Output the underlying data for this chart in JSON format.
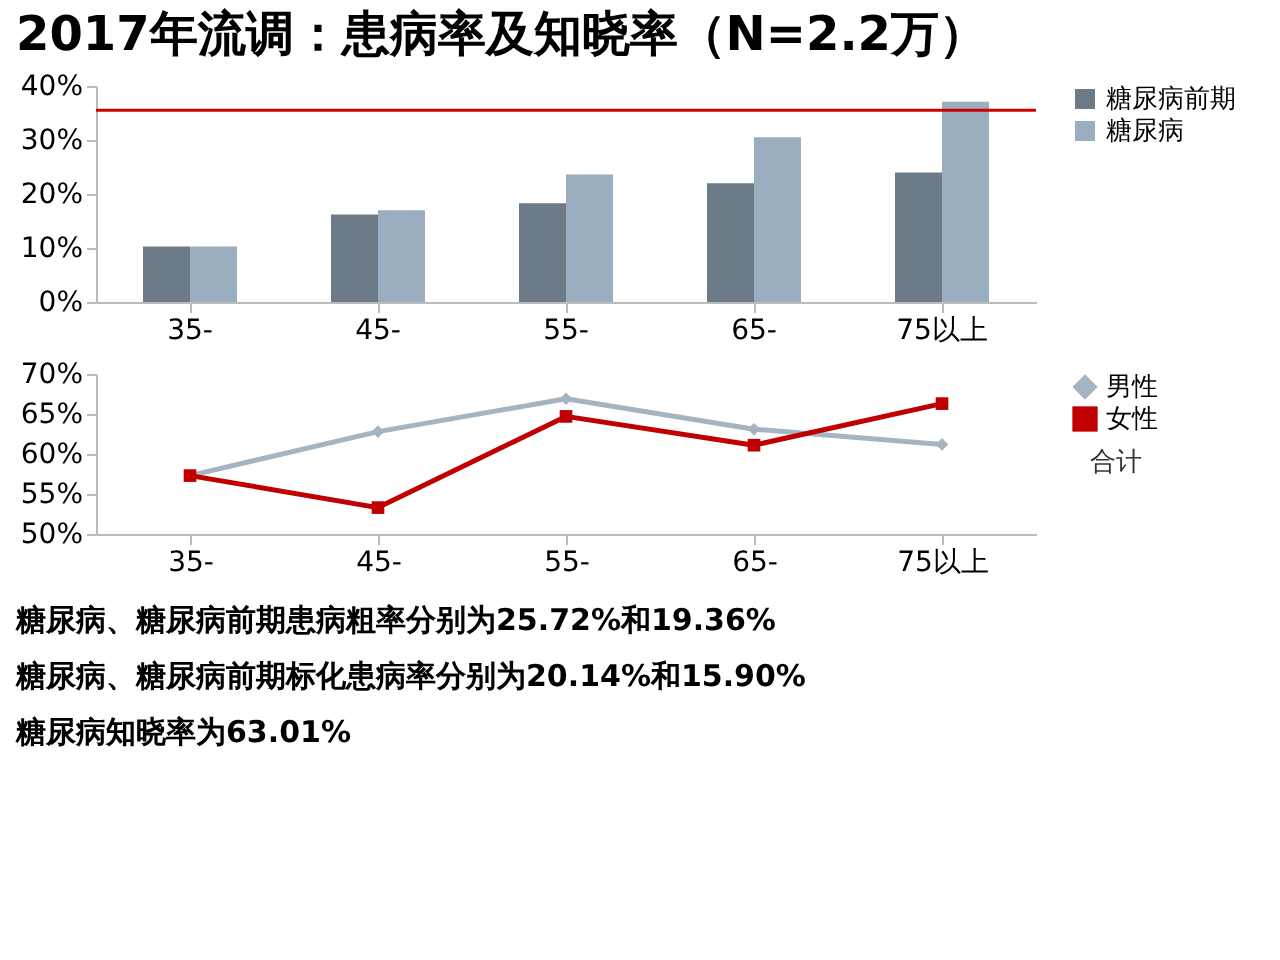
{
  "chart_data": [
    {
      "type": "bar",
      "title": "2017年流调：患病率及知晓率（N=2.2万）",
      "categories": [
        "35-",
        "45-",
        "55-",
        "65-",
        "75以上"
      ],
      "series": [
        {
          "name": "糖尿病前期",
          "color": "#6d7b88",
          "values": [
            10.3,
            16.2,
            18.3,
            22,
            24
          ]
        },
        {
          "name": "糖尿病",
          "color": "#9aaebf",
          "values": [
            10.3,
            17,
            23.6,
            30.5,
            37.1
          ]
        }
      ],
      "ylim": [
        0,
        40
      ],
      "yticks": [
        {
          "value": 0,
          "label": "0%"
        },
        {
          "value": 10,
          "label": "10%"
        },
        {
          "value": 20,
          "label": "20%"
        },
        {
          "value": 30,
          "label": "30%"
        },
        {
          "value": 40,
          "label": "40%"
        }
      ],
      "ref_lines": [
        {
          "axis": "y",
          "value": 35.5,
          "color": "#cc0000"
        }
      ],
      "legend": "right",
      "grid": false
    },
    {
      "type": "line",
      "categories": [
        "35-",
        "45-",
        "55-",
        "65-",
        "75以上"
      ],
      "series": [
        {
          "name": "男性",
          "color": "#a5b4c2",
          "marker": "diamond",
          "values": [
            57.3,
            62.8,
            66.9,
            63.1,
            61.2
          ]
        },
        {
          "name": "女性",
          "color": "#c00000",
          "marker": "square",
          "values": [
            57.3,
            53.3,
            64.7,
            61.1,
            66.3
          ]
        }
      ],
      "ylim": [
        50,
        70
      ],
      "yticks": [
        {
          "value": 50,
          "label": "50%"
        },
        {
          "value": 55,
          "label": "55%"
        },
        {
          "value": 60,
          "label": "60%"
        },
        {
          "value": 65,
          "label": "65%"
        },
        {
          "value": 70,
          "label": "70%"
        }
      ],
      "legend": "right",
      "grid": false,
      "line_style": "solid",
      "annotations": [
        "合计",
        "糖尿病、糖尿病前期患病粗率分别为25.72%和19.36%",
        "糖尿病、糖尿病前期标化患病率分别为20.14%和15.90%",
        "糖尿病知晓率为63.01%"
      ]
    }
  ]
}
